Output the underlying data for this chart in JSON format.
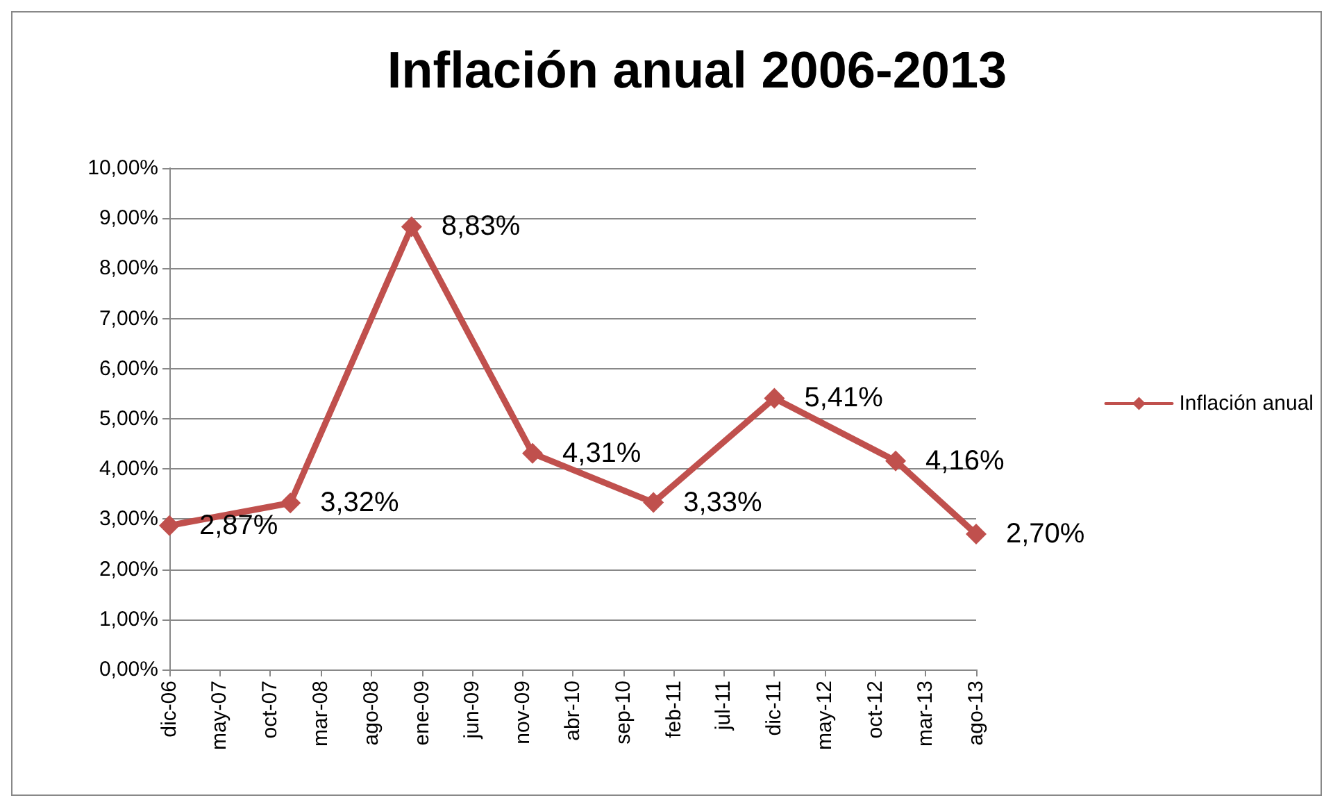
{
  "chart_data": {
    "type": "line",
    "title": "Inflación anual 2006-2013",
    "x": [
      "2006-12",
      "2007-12",
      "2008-12",
      "2009-12",
      "2010-12",
      "2011-12",
      "2012-12",
      "2013-08"
    ],
    "series": [
      {
        "name": "Inflación anual",
        "color": "#c0504d",
        "values": [
          2.87,
          3.32,
          8.83,
          4.31,
          3.33,
          5.41,
          4.16,
          2.7
        ],
        "value_labels": [
          "2,87%",
          "3,32%",
          "8,83%",
          "4,31%",
          "3,33%",
          "5,41%",
          "4,16%",
          "2,70%"
        ]
      }
    ],
    "xlim": [
      "2006-12",
      "2013-08"
    ],
    "xticks": [
      {
        "value": "2006-12",
        "label": "dic-06"
      },
      {
        "value": "2007-05",
        "label": "may-07"
      },
      {
        "value": "2007-10",
        "label": "oct-07"
      },
      {
        "value": "2008-03",
        "label": "mar-08"
      },
      {
        "value": "2008-08",
        "label": "ago-08"
      },
      {
        "value": "2009-01",
        "label": "ene-09"
      },
      {
        "value": "2009-06",
        "label": "jun-09"
      },
      {
        "value": "2009-11",
        "label": "nov-09"
      },
      {
        "value": "2010-04",
        "label": "abr-10"
      },
      {
        "value": "2010-09",
        "label": "sep-10"
      },
      {
        "value": "2011-02",
        "label": "feb-11"
      },
      {
        "value": "2011-07",
        "label": "jul-11"
      },
      {
        "value": "2011-12",
        "label": "dic-11"
      },
      {
        "value": "2012-05",
        "label": "may-12"
      },
      {
        "value": "2012-10",
        "label": "oct-12"
      },
      {
        "value": "2013-03",
        "label": "mar-13"
      },
      {
        "value": "2013-08",
        "label": "ago-13"
      }
    ],
    "ylim": [
      0,
      10
    ],
    "yticks": [
      {
        "value": 0,
        "label": "0,00%"
      },
      {
        "value": 1,
        "label": "1,00%"
      },
      {
        "value": 2,
        "label": "2,00%"
      },
      {
        "value": 3,
        "label": "3,00%"
      },
      {
        "value": 4,
        "label": "4,00%"
      },
      {
        "value": 5,
        "label": "5,00%"
      },
      {
        "value": 6,
        "label": "6,00%"
      },
      {
        "value": 7,
        "label": "7,00%"
      },
      {
        "value": 8,
        "label": "8,00%"
      },
      {
        "value": 9,
        "label": "9,00%"
      },
      {
        "value": 10,
        "label": "10,00%"
      }
    ],
    "grid": "y",
    "legend": "right",
    "marker": "diamond",
    "line_style": "solid"
  }
}
